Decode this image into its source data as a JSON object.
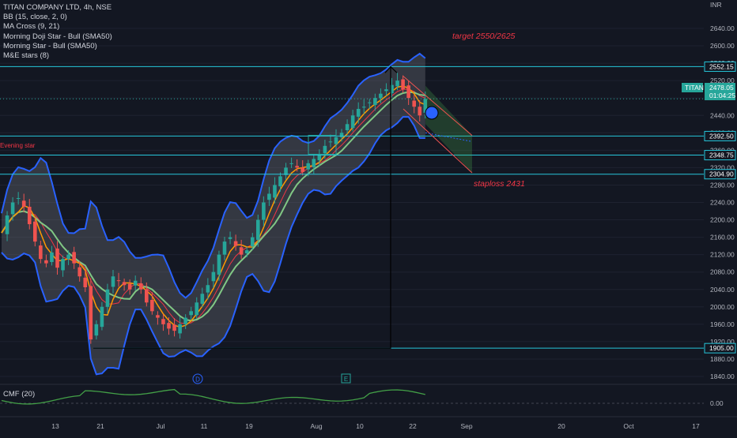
{
  "legend": {
    "symbol": "TITAN COMPANY LTD, 4h, NSE",
    "indicators": [
      "BB (15, close, 2, 0)",
      "MA Cross (9, 21)",
      "Morning Doji Star - Bull (SMA50)",
      "Morning Star - Bull (SMA50)",
      "M&E stars (8)"
    ]
  },
  "currency_label": "INR",
  "annotations": {
    "target": "target 2550/2625",
    "stoploss": "staploss 2431",
    "evening_star": "Evening star",
    "marker_d": "D",
    "marker_e": "E"
  },
  "cmf": {
    "label": "CMF (20)",
    "tick": "0.00"
  },
  "last_price": {
    "symbol": "TITAN",
    "price": "2478.05",
    "countdown": "01:04:25"
  },
  "chart_data": {
    "type": "candlestick",
    "title": "TITAN COMPANY LTD, 4h, NSE",
    "yaxis": {
      "ticks": [
        1840,
        1880,
        1920,
        1960,
        2000,
        2040,
        2080,
        2120,
        2160,
        2200,
        2240,
        2280,
        2320,
        2360,
        2400,
        2440,
        2480,
        2520,
        2560,
        2600,
        2640
      ],
      "tick_labels": [
        "1840.00",
        "1880.00",
        "1920.00",
        "1960.00",
        "2000.00",
        "2040.00",
        "2080.00",
        "2120.00",
        "2160.00",
        "2200.00",
        "2240.00",
        "2280.00",
        "2320.00",
        "2360.00",
        "2400.00",
        "2440.00",
        "2480.00",
        "2520.00",
        "2560.00",
        "2600.00",
        "2640.00"
      ],
      "range": [
        1812,
        2648
      ]
    },
    "xaxis": {
      "tick_labels": [
        "13",
        "21",
        "Jul",
        "11",
        "19",
        "Aug",
        "10",
        "22",
        "Sep",
        "20",
        "Oct",
        "17"
      ]
    },
    "horizontal_levels": [
      {
        "value": 2552.15,
        "label": "2552.15"
      },
      {
        "value": 2392.5,
        "label": "2392.50"
      },
      {
        "value": 2348.75,
        "label": "2348.75"
      },
      {
        "value": 2304.9,
        "label": "2304.90"
      },
      {
        "value": 1905.0,
        "label": "1905.00"
      }
    ],
    "price_path": [
      [
        0,
        2170
      ],
      [
        1,
        2210
      ],
      [
        2,
        2240
      ],
      [
        3,
        2250
      ],
      [
        4,
        2230
      ],
      [
        5,
        2190
      ],
      [
        6,
        2150
      ],
      [
        7,
        2110
      ],
      [
        8,
        2100
      ],
      [
        9,
        2125
      ],
      [
        10,
        2090
      ],
      [
        11,
        2110
      ],
      [
        12,
        2120
      ],
      [
        13,
        2100
      ],
      [
        14,
        2070
      ],
      [
        15,
        2045
      ],
      [
        16,
        1925
      ],
      [
        17,
        1960
      ],
      [
        18,
        2000
      ],
      [
        19,
        2040
      ],
      [
        20,
        2070
      ],
      [
        21,
        2060
      ],
      [
        22,
        2050
      ],
      [
        23,
        2040
      ],
      [
        24,
        2060
      ],
      [
        25,
        2040
      ],
      [
        26,
        2010
      ],
      [
        27,
        1990
      ],
      [
        28,
        1975
      ],
      [
        29,
        1960
      ],
      [
        30,
        1950
      ],
      [
        31,
        1945
      ],
      [
        32,
        1960
      ],
      [
        33,
        1975
      ],
      [
        34,
        1990
      ],
      [
        35,
        2010
      ],
      [
        36,
        2030
      ],
      [
        37,
        2050
      ],
      [
        38,
        2080
      ],
      [
        39,
        2120
      ],
      [
        40,
        2150
      ],
      [
        41,
        2160
      ],
      [
        42,
        2140
      ],
      [
        43,
        2120
      ],
      [
        44,
        2130
      ],
      [
        45,
        2160
      ],
      [
        46,
        2200
      ],
      [
        47,
        2240
      ],
      [
        48,
        2260
      ],
      [
        49,
        2280
      ],
      [
        50,
        2300
      ],
      [
        51,
        2320
      ],
      [
        52,
        2330
      ],
      [
        53,
        2320
      ],
      [
        54,
        2310
      ],
      [
        55,
        2330
      ],
      [
        56,
        2340
      ],
      [
        57,
        2350
      ],
      [
        58,
        2370
      ],
      [
        59,
        2380
      ],
      [
        60,
        2390
      ],
      [
        61,
        2400
      ],
      [
        62,
        2420
      ],
      [
        63,
        2440
      ],
      [
        64,
        2455
      ],
      [
        65,
        2460
      ],
      [
        66,
        2470
      ],
      [
        67,
        2480
      ],
      [
        68,
        2490
      ],
      [
        69,
        2500
      ],
      [
        70,
        2510
      ],
      [
        71,
        2520
      ],
      [
        72,
        2500
      ],
      [
        73,
        2480
      ],
      [
        74,
        2460
      ],
      [
        75,
        2440
      ],
      [
        76,
        2478
      ]
    ]
  }
}
